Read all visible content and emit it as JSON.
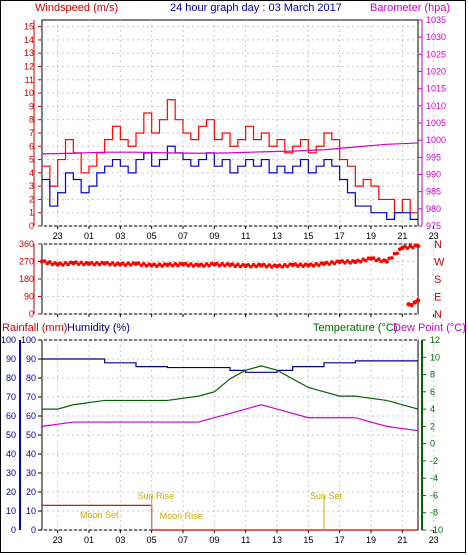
{
  "header": {
    "left_title": "Windspeed (m/s)",
    "center_title": "24 hour graph day : 03 March 2017",
    "right_title": "Barometer (hpa)"
  },
  "lower_header": {
    "rainfall": "Rainfall (mm)",
    "humidity": "Humidity (%)",
    "temperature": "Temperature (°C)",
    "dewpoint": "Dew Point (°C)"
  },
  "colors": {
    "windspeed": "#ff0000",
    "gust": "#ff0000",
    "wind_avg": "#0000cc",
    "barometer": "#cc00cc",
    "direction": "#ff0000",
    "humidity": "#00008b",
    "temperature": "#006400",
    "dewpoint": "#cc00cc",
    "rain": "#cc0000",
    "sun_moon": "#ccaa00"
  },
  "annotations": {
    "moon_set": "Moon Set",
    "sun_rise": "Sun Rise",
    "sun_set": "Sun Set",
    "moon_rise": "Moon Rise"
  },
  "chart_data": [
    {
      "type": "line",
      "panel": "wind-barometer",
      "x_ticks": [
        "23",
        "01",
        "03",
        "05",
        "07",
        "09",
        "11",
        "13",
        "15",
        "17",
        "19",
        "21",
        "23"
      ],
      "y_left_ticks": [
        "0",
        "1",
        "2",
        "3",
        "4",
        "5",
        "6",
        "7",
        "8",
        "9",
        "10",
        "11",
        "12",
        "13",
        "14",
        "15"
      ],
      "ylim_left": [
        0,
        15.5
      ],
      "y_right_ticks": [
        "975",
        "980",
        "985",
        "990",
        "995",
        "1000",
        "1005",
        "1010",
        "1015",
        "1020",
        "1025",
        "1030",
        "1035"
      ],
      "ylim_right": [
        975,
        1035
      ],
      "x_range_hours": [
        0,
        24
      ],
      "series": [
        {
          "axis": "left",
          "style": "gust",
          "x": [
            0,
            0.5,
            1,
            1.5,
            2,
            2.5,
            3,
            3.5,
            4,
            4.5,
            5,
            5.5,
            6,
            6.5,
            7,
            7.5,
            8,
            8.5,
            9,
            9.5,
            10,
            10.5,
            11,
            11.5,
            12,
            12.5,
            13,
            13.5,
            14,
            14.5,
            15,
            15.5,
            16,
            16.5,
            17,
            17.5,
            18,
            18.5,
            19,
            19.5,
            20,
            20.5,
            21,
            21.5,
            22,
            22.5,
            23,
            23.5,
            24
          ],
          "values": [
            4.5,
            3,
            5,
            6.5,
            5.5,
            4,
            4.5,
            5.5,
            6.5,
            7.5,
            6.5,
            6,
            7,
            8.5,
            7,
            8,
            9.5,
            8,
            7,
            6.5,
            7.5,
            8,
            6.5,
            7,
            6,
            6.5,
            7.5,
            6.5,
            7,
            6,
            6.5,
            5.5,
            6,
            6.5,
            5.5,
            6,
            7,
            6.5,
            5,
            4.5,
            3,
            3.5,
            3,
            2,
            2,
            1,
            2,
            1,
            1
          ]
        },
        {
          "axis": "left",
          "style": "avg",
          "x": [
            0,
            0.5,
            1,
            1.5,
            2,
            2.5,
            3,
            3.5,
            4,
            4.5,
            5,
            5.5,
            6,
            6.5,
            7,
            7.5,
            8,
            8.5,
            9,
            9.5,
            10,
            10.5,
            11,
            11.5,
            12,
            12.5,
            13,
            13.5,
            14,
            14.5,
            15,
            15.5,
            16,
            16.5,
            17,
            17.5,
            18,
            18.5,
            19,
            19.5,
            20,
            20.5,
            21,
            21.5,
            22,
            22.5,
            23,
            23.5,
            24
          ],
          "values": [
            3.5,
            1.5,
            2.5,
            4,
            3.5,
            2.5,
            3,
            4,
            4.5,
            5,
            4.5,
            4,
            5,
            5.5,
            4.5,
            5,
            6,
            5.5,
            5,
            4.5,
            5,
            5.5,
            4.5,
            5,
            4,
            4.5,
            5,
            4.5,
            5,
            4,
            4.5,
            4,
            4.5,
            5,
            4,
            4.5,
            5,
            4.5,
            3.5,
            2.5,
            1.5,
            1.5,
            1,
            1,
            0.5,
            1,
            1,
            0.5,
            0.5
          ]
        },
        {
          "axis": "right",
          "style": "barometer",
          "x": [
            0,
            2,
            4,
            6,
            8,
            10,
            12,
            14,
            16,
            18,
            20,
            22,
            24
          ],
          "values": [
            996,
            996.2,
            996.5,
            996.5,
            996.3,
            996.2,
            996.3,
            996.6,
            996.8,
            997.2,
            998,
            998.8,
            999.2
          ]
        }
      ]
    },
    {
      "type": "scatter",
      "panel": "wind-direction",
      "x_ticks": [
        "23",
        "01",
        "03",
        "05",
        "07",
        "09",
        "11",
        "13",
        "15",
        "17",
        "19",
        "21",
        "23"
      ],
      "y_left_ticks": [
        "360",
        "270",
        "180",
        "90",
        "0"
      ],
      "ylim_left": [
        0,
        360
      ],
      "y_right_ticks": [
        "N",
        "W",
        "S",
        "E",
        "N"
      ],
      "series": [
        {
          "style": "direction",
          "x": [
            0,
            1,
            2,
            3,
            4,
            5,
            6,
            7,
            8,
            9,
            10,
            11,
            12,
            13,
            14,
            15,
            16,
            17,
            18,
            19,
            20,
            21,
            22,
            23,
            24
          ],
          "values": [
            270,
            255,
            262,
            258,
            260,
            255,
            258,
            250,
            252,
            255,
            250,
            255,
            252,
            248,
            250,
            245,
            252,
            250,
            258,
            268,
            268,
            285,
            270,
            340,
            350
          ]
        },
        {
          "style": "direction-late",
          "x": [
            23.4,
            23.6,
            23.8,
            24
          ],
          "values": [
            50,
            45,
            60,
            70
          ]
        }
      ]
    },
    {
      "type": "line",
      "panel": "rain-humidity-temp",
      "x_ticks": [
        "23",
        "01",
        "03",
        "05",
        "07",
        "09",
        "11",
        "13",
        "15",
        "17",
        "19",
        "21",
        "23"
      ],
      "y_left_outer_ticks": [
        "100",
        "90",
        "80",
        "70",
        "60",
        "50",
        "40",
        "30",
        "20",
        "10",
        "0"
      ],
      "y_left_inner_ticks": [
        "100",
        "90",
        "80",
        "70",
        "60",
        "50",
        "40",
        "30",
        "20",
        "10",
        "0"
      ],
      "ylim_left": [
        0,
        100
      ],
      "y_right_ticks": [
        "12",
        "10",
        "8",
        "6",
        "4",
        "2",
        "0",
        "-2",
        "-4",
        "-6",
        "-8",
        "-10"
      ],
      "ylim_right": [
        -10,
        12
      ],
      "series": [
        {
          "axis": "left",
          "style": "humidity",
          "x": [
            0,
            2,
            4,
            6,
            8,
            10,
            12,
            13,
            14,
            15,
            16,
            18,
            20,
            22,
            24
          ],
          "values": [
            90,
            90,
            88,
            86,
            85.5,
            85.5,
            84,
            83,
            83,
            84,
            86,
            88,
            89,
            89,
            89
          ]
        },
        {
          "axis": "right",
          "style": "temperature",
          "x": [
            0,
            1,
            2,
            4,
            6,
            8,
            10,
            11,
            12,
            13,
            14,
            15,
            16,
            17,
            18,
            19,
            20,
            22,
            24
          ],
          "values": [
            4,
            4,
            4.5,
            5,
            5,
            5,
            5.5,
            6,
            7.5,
            8.5,
            9,
            8.5,
            7.5,
            6.5,
            6,
            5.5,
            5.5,
            5,
            4
          ]
        },
        {
          "axis": "right",
          "style": "dewpoint",
          "x": [
            0,
            2,
            4,
            6,
            8,
            10,
            11,
            12,
            13,
            14,
            15,
            16,
            17,
            18,
            20,
            22,
            24
          ],
          "values": [
            2,
            2.5,
            2.5,
            2.5,
            2.5,
            2.5,
            3,
            3.5,
            4,
            4.5,
            4,
            3.5,
            3,
            3,
            3,
            2,
            1.5
          ]
        },
        {
          "axis": "left",
          "style": "rain",
          "x": [
            0,
            7,
            7,
            24
          ],
          "values": [
            13,
            13,
            0,
            0
          ]
        }
      ]
    }
  ]
}
